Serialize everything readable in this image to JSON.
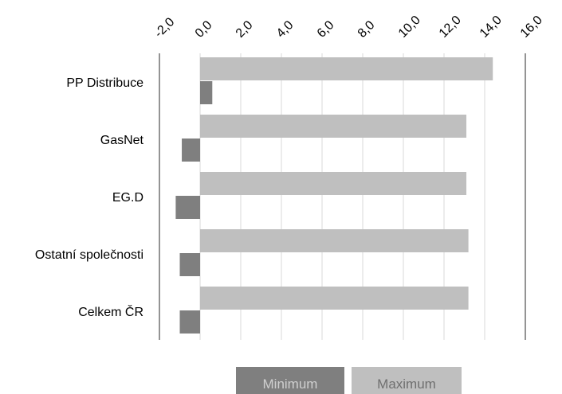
{
  "chart_data": {
    "type": "bar",
    "orientation": "horizontal",
    "categories": [
      "PP Distribuce",
      "GasNet",
      "EG.D",
      "Ostatní společnosti",
      "Celkem ČR"
    ],
    "series": [
      {
        "name": "Minimum",
        "values": [
          0.6,
          -0.9,
          -1.2,
          -1.0,
          -1.0
        ],
        "color": "#7f7f7f"
      },
      {
        "name": "Maximum",
        "values": [
          14.4,
          13.1,
          13.1,
          13.2,
          13.2
        ],
        "color": "#bfbfbf"
      }
    ],
    "x_ticks": [
      "-2,0",
      "0,0",
      "2,0",
      "4,0",
      "6,0",
      "8,0",
      "10,0",
      "12,0",
      "14,0",
      "16,0"
    ],
    "xlim": [
      -2,
      16
    ],
    "grid": true,
    "legend_position": "bottom"
  }
}
